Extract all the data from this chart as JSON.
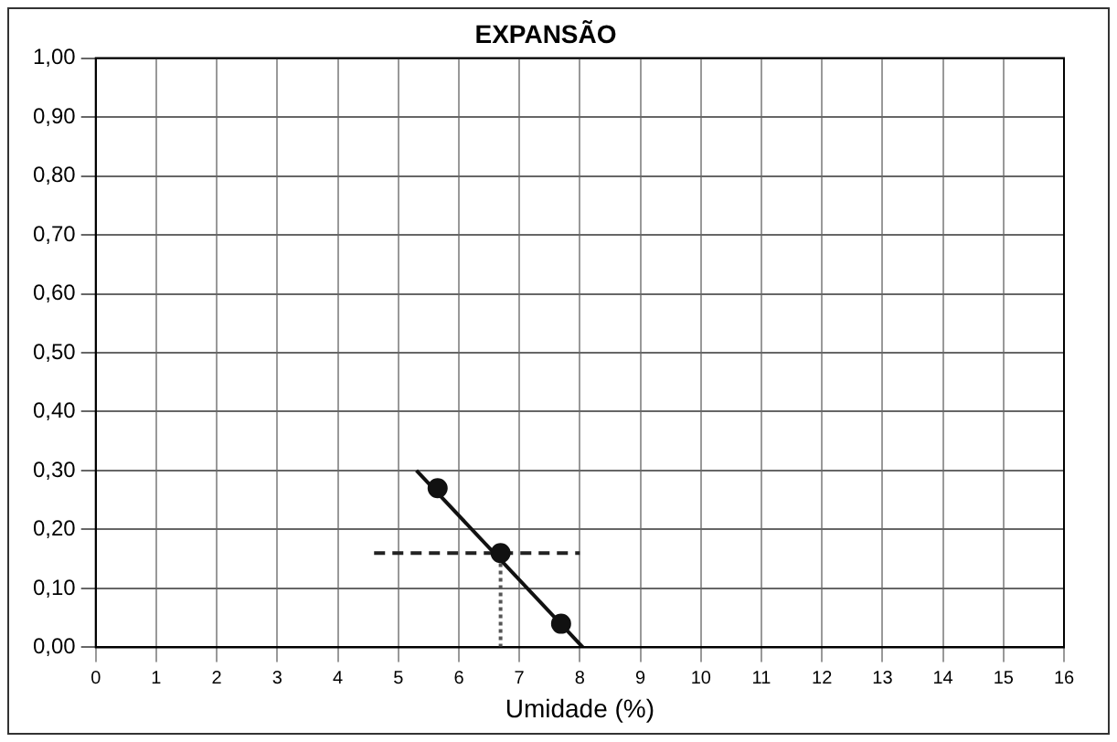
{
  "chart_data": {
    "type": "scatter",
    "title": "EXPANSÃO",
    "xlabel": "Umidade (%)",
    "xlim": [
      0,
      16
    ],
    "xticks": [
      0,
      1,
      2,
      3,
      4,
      5,
      6,
      7,
      8,
      9,
      10,
      11,
      12,
      13,
      14,
      15,
      16
    ],
    "ylim": [
      0,
      1
    ],
    "yticks": [
      {
        "value": 0,
        "label": "0,00"
      },
      {
        "value": 0.1,
        "label": "0,10"
      },
      {
        "value": 0.2,
        "label": "0,20"
      },
      {
        "value": 0.3,
        "label": "0,30"
      },
      {
        "value": 0.4,
        "label": "0,40"
      },
      {
        "value": 0.5,
        "label": "0,50"
      },
      {
        "value": 0.6,
        "label": "0,60"
      },
      {
        "value": 0.7,
        "label": "0,70"
      },
      {
        "value": 0.8,
        "label": "0,80"
      },
      {
        "value": 0.9,
        "label": "0,90"
      },
      {
        "value": 1,
        "label": "1,00"
      }
    ],
    "grid": true,
    "legend": false,
    "marker": "circle",
    "series": [
      {
        "color": "#111111",
        "x": [
          5.65,
          6.69,
          7.69
        ],
        "values": [
          0.27,
          0.16,
          0.04
        ]
      },
      {
        "type": "line",
        "color": "#111111",
        "x": [
          5.3,
          8.05
        ],
        "values": [
          0.3,
          0
        ],
        "marker": "none",
        "line_style": "solid"
      },
      {
        "type": "line",
        "color": "#222222",
        "x": [
          4.6,
          8.0
        ],
        "values": [
          0.16,
          0.16
        ],
        "marker": "none",
        "line_style": "dashed"
      },
      {
        "type": "line",
        "color": "#555555",
        "x": [
          6.69,
          6.69
        ],
        "values": [
          0,
          0.16
        ],
        "marker": "none",
        "line_style": "dotted"
      }
    ]
  }
}
